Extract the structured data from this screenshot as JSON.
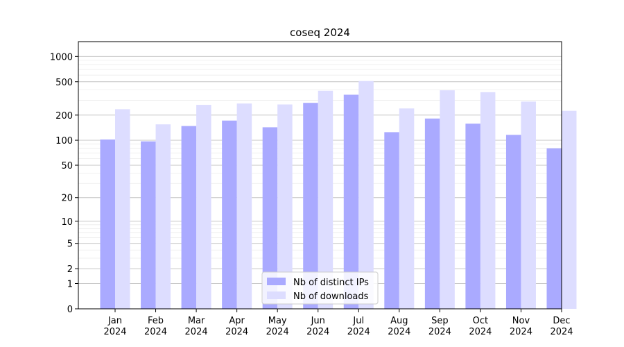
{
  "chart_data": {
    "type": "bar",
    "title": "coseq 2024",
    "xlabel": "",
    "ylabel": "",
    "scale": "log(1+y)",
    "ylim": [
      0,
      1500
    ],
    "yticks": [
      0,
      1,
      2,
      5,
      10,
      20,
      50,
      100,
      200,
      500,
      1000
    ],
    "grid": true,
    "legend_position": "bottom-center",
    "categories": [
      [
        "Jan",
        "2024"
      ],
      [
        "Feb",
        "2024"
      ],
      [
        "Mar",
        "2024"
      ],
      [
        "Apr",
        "2024"
      ],
      [
        "May",
        "2024"
      ],
      [
        "Jun",
        "2024"
      ],
      [
        "Jul",
        "2024"
      ],
      [
        "Aug",
        "2024"
      ],
      [
        "Sep",
        "2024"
      ],
      [
        "Oct",
        "2024"
      ],
      [
        "Nov",
        "2024"
      ],
      [
        "Dec",
        "2024"
      ]
    ],
    "series": [
      {
        "name": "Nb of distinct IPs",
        "color": "#aaaaff",
        "values": [
          102,
          97,
          148,
          172,
          143,
          280,
          350,
          125,
          182,
          158,
          116,
          80
        ]
      },
      {
        "name": "Nb of downloads",
        "color": "#ddddff",
        "values": [
          235,
          155,
          265,
          275,
          268,
          390,
          510,
          240,
          395,
          375,
          290,
          225
        ]
      }
    ]
  }
}
